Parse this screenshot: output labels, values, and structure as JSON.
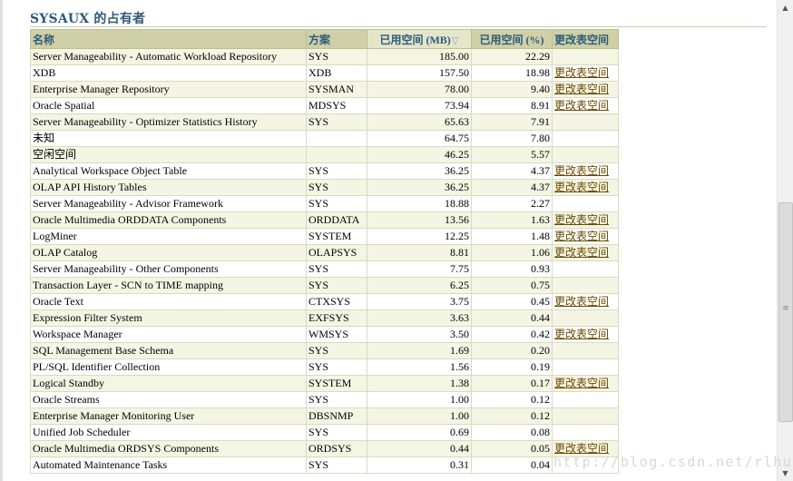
{
  "title": "SYSAUX 的占有者",
  "columns": {
    "name": "名称",
    "schema": "方案",
    "used_mb": "已用空间 (MB)",
    "used_pct": "已用空间 (%)",
    "action": "更改表空间"
  },
  "rows": [
    {
      "name": "Server Manageability - Automatic Workload Repository",
      "schema": "SYS",
      "mb": "185.00",
      "pct": "22.29",
      "action": ""
    },
    {
      "name": "XDB",
      "schema": "XDB",
      "mb": "157.50",
      "pct": "18.98",
      "action": "更改表空间"
    },
    {
      "name": "Enterprise Manager Repository",
      "schema": "SYSMAN",
      "mb": "78.00",
      "pct": "9.40",
      "action": "更改表空间"
    },
    {
      "name": "Oracle Spatial",
      "schema": "MDSYS",
      "mb": "73.94",
      "pct": "8.91",
      "action": "更改表空间"
    },
    {
      "name": "Server Manageability - Optimizer Statistics History",
      "schema": "SYS",
      "mb": "65.63",
      "pct": "7.91",
      "action": ""
    },
    {
      "name": "未知",
      "schema": "",
      "mb": "64.75",
      "pct": "7.80",
      "action": ""
    },
    {
      "name": "空闲空间",
      "schema": "",
      "mb": "46.25",
      "pct": "5.57",
      "action": ""
    },
    {
      "name": "Analytical Workspace Object Table",
      "schema": "SYS",
      "mb": "36.25",
      "pct": "4.37",
      "action": "更改表空间"
    },
    {
      "name": "OLAP API History Tables",
      "schema": "SYS",
      "mb": "36.25",
      "pct": "4.37",
      "action": "更改表空间"
    },
    {
      "name": "Server Manageability - Advisor Framework",
      "schema": "SYS",
      "mb": "18.88",
      "pct": "2.27",
      "action": ""
    },
    {
      "name": "Oracle Multimedia ORDDATA Components",
      "schema": "ORDDATA",
      "mb": "13.56",
      "pct": "1.63",
      "action": "更改表空间"
    },
    {
      "name": "LogMiner",
      "schema": "SYSTEM",
      "mb": "12.25",
      "pct": "1.48",
      "action": "更改表空间"
    },
    {
      "name": "OLAP Catalog",
      "schema": "OLAPSYS",
      "mb": "8.81",
      "pct": "1.06",
      "action": "更改表空间"
    },
    {
      "name": "Server Manageability - Other Components",
      "schema": "SYS",
      "mb": "7.75",
      "pct": "0.93",
      "action": ""
    },
    {
      "name": "Transaction Layer - SCN to TIME mapping",
      "schema": "SYS",
      "mb": "6.25",
      "pct": "0.75",
      "action": ""
    },
    {
      "name": "Oracle Text",
      "schema": "CTXSYS",
      "mb": "3.75",
      "pct": "0.45",
      "action": "更改表空间"
    },
    {
      "name": "Expression Filter System",
      "schema": "EXFSYS",
      "mb": "3.63",
      "pct": "0.44",
      "action": ""
    },
    {
      "name": "Workspace Manager",
      "schema": "WMSYS",
      "mb": "3.50",
      "pct": "0.42",
      "action": "更改表空间"
    },
    {
      "name": "SQL Management Base Schema",
      "schema": "SYS",
      "mb": "1.69",
      "pct": "0.20",
      "action": ""
    },
    {
      "name": "PL/SQL Identifier Collection",
      "schema": "SYS",
      "mb": "1.56",
      "pct": "0.19",
      "action": ""
    },
    {
      "name": "Logical Standby",
      "schema": "SYSTEM",
      "mb": "1.38",
      "pct": "0.17",
      "action": "更改表空间"
    },
    {
      "name": "Oracle Streams",
      "schema": "SYS",
      "mb": "1.00",
      "pct": "0.12",
      "action": ""
    },
    {
      "name": "Enterprise Manager Monitoring User",
      "schema": "DBSNMP",
      "mb": "1.00",
      "pct": "0.12",
      "action": ""
    },
    {
      "name": "Unified Job Scheduler",
      "schema": "SYS",
      "mb": "0.69",
      "pct": "0.08",
      "action": ""
    },
    {
      "name": "Oracle Multimedia ORDSYS Components",
      "schema": "ORDSYS",
      "mb": "0.44",
      "pct": "0.05",
      "action": "更改表空间"
    },
    {
      "name": "Automated Maintenance Tasks",
      "schema": "SYS",
      "mb": "0.31",
      "pct": "0.04",
      "action": ""
    }
  ],
  "sort": {
    "column": "used_mb",
    "direction": "descending",
    "icon": "sort-descending-icon"
  },
  "watermark": "http://blog.csdn.net/rlhua",
  "colors": {
    "header_bg": "#cfd0a7",
    "header_text": "#2c5a7a",
    "link": "#6b4a00",
    "row_alt": "#f5f5e4"
  }
}
